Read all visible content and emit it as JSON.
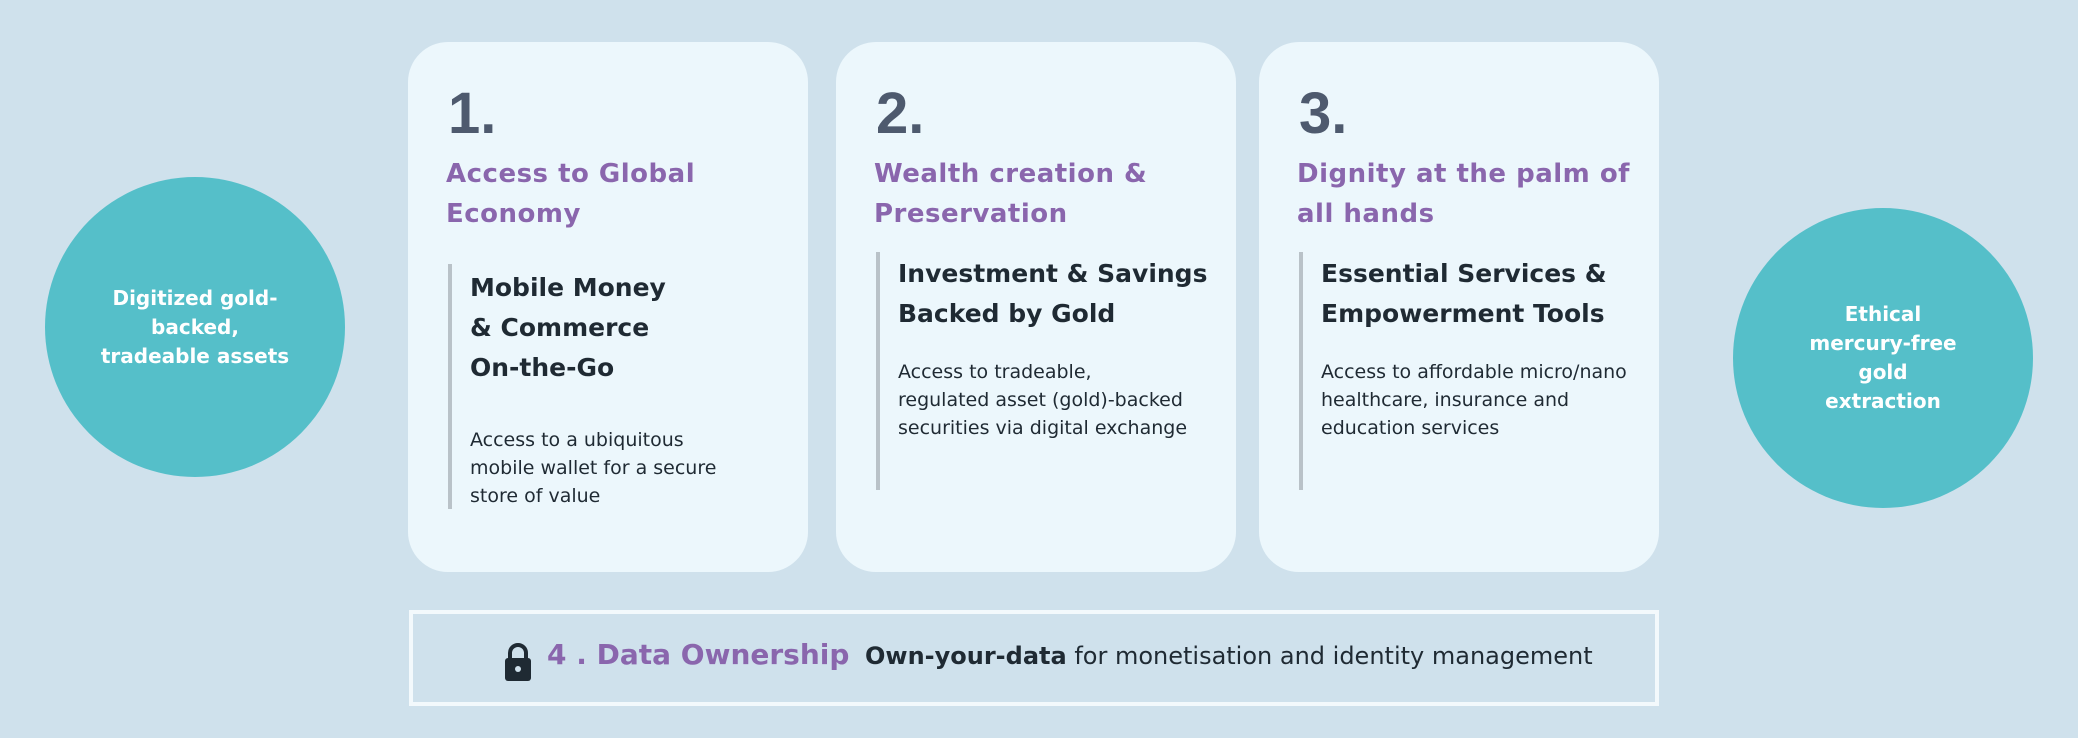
{
  "left_circle": {
    "label": "Digitized gold-backed, tradeable assets"
  },
  "right_circle": {
    "label": "Ethical mercury-free gold extraction"
  },
  "cards": [
    {
      "number": "1.",
      "heading": "Access to Global Economy",
      "subheading": "Mobile Money & Commerce On-the-Go",
      "body": "Access to a ubiquitous mobile wallet for a secure store of value"
    },
    {
      "number": "2.",
      "heading": "Wealth creation & Preservation",
      "subheading": "Investment & Savings Backed by Gold",
      "body": "Access to tradeable, regulated asset (gold)-backed securities via digital exchange"
    },
    {
      "number": "3.",
      "heading": "Dignity at the palm of all hands",
      "subheading": "Essential Services & Empowerment Tools",
      "body": "Access to affordable micro/nano healthcare, insurance and education services"
    }
  ],
  "bottom": {
    "icon": "lock-icon",
    "title": "4 . Data Ownership",
    "bold_text": "Own-your-data",
    "text": " for monetisation and identity management"
  },
  "colors": {
    "background": "#cfe1ec",
    "circle": "#55bfc9",
    "card": "#ecf7fc",
    "accent_purple": "#8a66ad",
    "number": "#4e5a6e"
  }
}
